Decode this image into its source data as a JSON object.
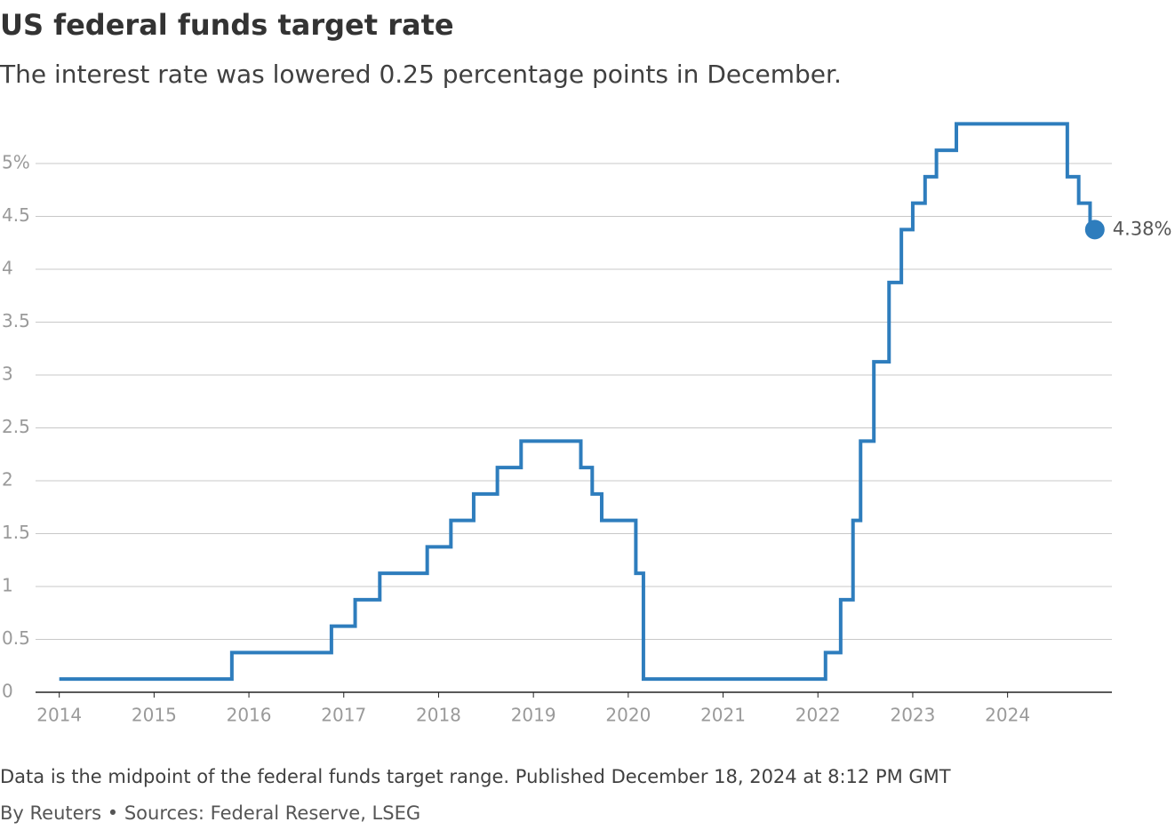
{
  "chart_data": {
    "type": "step",
    "title": "US federal funds target rate",
    "subtitle": "The interest rate was lowered 0.25 percentage points in December.",
    "note": "Data is the midpoint of the federal funds target range. Published December 18, 2024 at 8:12 PM GMT",
    "source": "By Reuters • Sources: Federal Reserve, LSEG",
    "xlim": [
      2013.75,
      2025.1
    ],
    "xticks": [
      2014,
      2015,
      2016,
      2017,
      2018,
      2019,
      2020,
      2021,
      2022,
      2023,
      2024
    ],
    "ylim": [
      0,
      5.5
    ],
    "yticks": [
      0,
      0.5,
      1,
      1.5,
      2,
      2.5,
      3,
      3.5,
      4,
      4.5,
      {
        "value": 5,
        "label": "5%"
      }
    ],
    "grid": true,
    "series": [
      {
        "color": "#2e7dbd",
        "x": [
          2014.0,
          2015.82,
          2016.87,
          2017.12,
          2017.38,
          2017.88,
          2018.13,
          2018.37,
          2018.62,
          2018.87,
          2019.5,
          2019.62,
          2019.72,
          2020.08,
          2020.16,
          2022.08,
          2022.24,
          2022.37,
          2022.45,
          2022.59,
          2022.75,
          2022.88,
          2023.0,
          2023.13,
          2023.25,
          2023.46,
          2024.63,
          2024.75,
          2024.87,
          2024.92
        ],
        "values": [
          0.125,
          0.375,
          0.625,
          0.875,
          1.125,
          1.375,
          1.625,
          1.875,
          2.125,
          2.375,
          2.125,
          1.875,
          1.625,
          1.125,
          0.125,
          0.375,
          0.875,
          1.625,
          2.375,
          3.125,
          3.875,
          4.375,
          4.625,
          4.875,
          5.125,
          5.375,
          4.875,
          4.625,
          4.375,
          4.375
        ],
        "value_labels": [
          null,
          null,
          null,
          null,
          null,
          null,
          null,
          null,
          null,
          null,
          null,
          null,
          null,
          null,
          null,
          null,
          null,
          null,
          null,
          null,
          null,
          null,
          null,
          null,
          null,
          null,
          null,
          null,
          null,
          "4.38%"
        ]
      }
    ]
  }
}
